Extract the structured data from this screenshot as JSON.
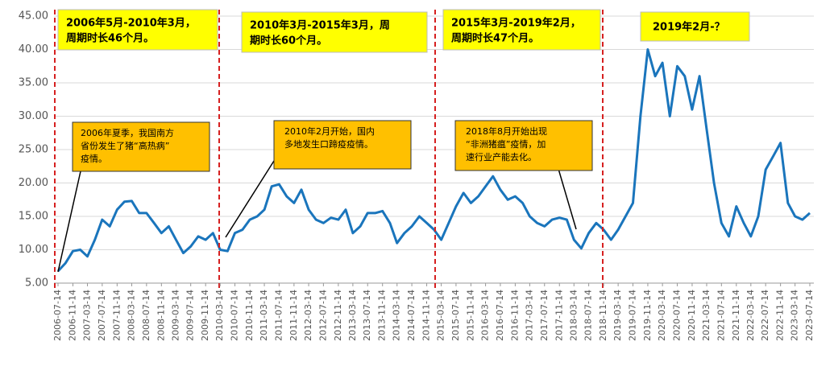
{
  "chart_data": {
    "type": "line",
    "x": [
      "2006-07-14",
      "2006-09-14",
      "2006-11-14",
      "2007-01-14",
      "2007-03-14",
      "2007-05-14",
      "2007-07-14",
      "2007-09-14",
      "2007-11-14",
      "2008-01-14",
      "2008-03-14",
      "2008-05-14",
      "2008-07-14",
      "2008-09-14",
      "2008-11-14",
      "2009-01-14",
      "2009-03-14",
      "2009-05-14",
      "2009-07-14",
      "2009-09-14",
      "2009-11-14",
      "2010-01-14",
      "2010-03-14",
      "2010-05-14",
      "2010-07-14",
      "2010-09-14",
      "2010-11-14",
      "2011-01-14",
      "2011-03-14",
      "2011-05-14",
      "2011-07-14",
      "2011-09-14",
      "2011-11-14",
      "2012-01-14",
      "2012-03-14",
      "2012-05-14",
      "2012-07-14",
      "2012-09-14",
      "2012-11-14",
      "2013-01-14",
      "2013-03-14",
      "2013-05-14",
      "2013-07-14",
      "2013-09-14",
      "2013-11-14",
      "2014-01-14",
      "2014-03-14",
      "2014-05-14",
      "2014-07-14",
      "2014-09-14",
      "2014-11-14",
      "2015-01-14",
      "2015-03-14",
      "2015-05-14",
      "2015-07-14",
      "2015-09-14",
      "2015-11-14",
      "2016-01-14",
      "2016-03-14",
      "2016-05-14",
      "2016-07-14",
      "2016-09-14",
      "2016-11-14",
      "2017-01-14",
      "2017-03-14",
      "2017-05-14",
      "2017-07-14",
      "2017-09-14",
      "2017-11-14",
      "2018-01-14",
      "2018-03-14",
      "2018-05-14",
      "2018-07-14",
      "2018-09-14",
      "2018-11-14",
      "2019-01-14",
      "2019-03-14",
      "2019-05-14",
      "2019-07-14",
      "2019-09-14",
      "2019-11-14",
      "2020-01-14",
      "2020-03-14",
      "2020-05-14",
      "2020-07-14",
      "2020-09-14",
      "2020-11-14",
      "2021-01-14",
      "2021-03-14",
      "2021-05-14",
      "2021-07-14",
      "2021-09-14",
      "2021-11-14",
      "2022-01-14",
      "2022-03-14",
      "2022-05-14",
      "2022-07-14",
      "2022-09-14",
      "2022-11-14",
      "2023-01-14",
      "2023-03-14",
      "2023-05-14",
      "2023-07-14"
    ],
    "series": [
      {
        "color": "#1a75bc",
        "values": [
          6.8,
          8.0,
          9.8,
          10.0,
          9.0,
          11.5,
          14.5,
          13.5,
          16.0,
          17.2,
          17.3,
          15.5,
          15.5,
          14.0,
          12.5,
          13.5,
          11.5,
          9.5,
          10.5,
          12.0,
          11.5,
          12.5,
          10.0,
          9.8,
          12.5,
          13.0,
          14.5,
          15.0,
          16.0,
          19.5,
          19.8,
          18.0,
          17.0,
          19.0,
          16.0,
          14.5,
          14.0,
          14.8,
          14.5,
          16.0,
          12.5,
          13.5,
          15.5,
          15.5,
          15.8,
          14.0,
          11.0,
          12.5,
          13.5,
          15.0,
          14.0,
          13.0,
          11.5,
          14.0,
          16.5,
          18.5,
          17.0,
          18.0,
          19.5,
          21.0,
          19.0,
          17.5,
          18.0,
          17.0,
          15.0,
          14.0,
          13.5,
          14.5,
          14.8,
          14.5,
          11.5,
          10.2,
          12.5,
          14.0,
          13.0,
          11.5,
          13.0,
          15.0,
          17.0,
          30.0,
          40.0,
          36.0,
          38.0,
          30.0,
          37.5,
          36.0,
          31.0,
          36.0,
          28.0,
          20.0,
          14.0,
          12.0,
          16.5,
          14.0,
          12.0,
          15.0,
          22.0,
          24.0,
          26.0,
          17.0,
          15.0,
          14.5,
          15.5
        ]
      }
    ],
    "xlim": [
      "2006-07-14",
      "2023-07-14"
    ],
    "xticks": [
      "2006-07-14",
      "2006-11-14",
      "2007-03-14",
      "2007-07-14",
      "2007-11-14",
      "2008-03-14",
      "2008-07-14",
      "2008-11-14",
      "2009-03-14",
      "2009-07-14",
      "2009-11-14",
      "2010-03-14",
      "2010-07-14",
      "2010-11-14",
      "2011-03-14",
      "2011-07-14",
      "2011-11-14",
      "2012-03-14",
      "2012-07-14",
      "2012-11-14",
      "2013-03-14",
      "2013-07-14",
      "2013-11-14",
      "2014-03-14",
      "2014-07-14",
      "2014-11-14",
      "2015-03-14",
      "2015-07-14",
      "2015-11-14",
      "2016-03-14",
      "2016-07-14",
      "2016-11-14",
      "2017-03-14",
      "2017-07-14",
      "2017-11-14",
      "2018-03-14",
      "2018-07-14",
      "2018-11-14",
      "2019-03-14",
      "2019-07-14",
      "2019-11-14",
      "2020-03-14",
      "2020-07-14",
      "2020-11-14",
      "2021-03-14",
      "2021-07-14",
      "2021-11-14",
      "2022-03-14",
      "2022-07-14",
      "2022-11-14",
      "2023-03-14",
      "2023-07-14"
    ],
    "ylim": [
      5,
      45
    ],
    "yticks": [
      {
        "value": 5,
        "label": "5.00"
      },
      {
        "value": 10,
        "label": "10.00"
      },
      {
        "value": 15,
        "label": "15.00"
      },
      {
        "value": 20,
        "label": "20.00"
      },
      {
        "value": 25,
        "label": "25.00"
      },
      {
        "value": 30,
        "label": "30.00"
      },
      {
        "value": 35,
        "label": "35.00"
      },
      {
        "value": 40,
        "label": "40.00"
      },
      {
        "value": 45,
        "label": "45.00"
      }
    ],
    "grid": true,
    "annotations": [
      {
        "lines": [
          "2006年5月-2010年3月，",
          "周期时长46个月。"
        ]
      },
      {
        "lines": [
          "2010年3月-2015年3月，周",
          "期时长60个月。"
        ]
      },
      {
        "lines": [
          "2015年3月-2019年2月，",
          "周期时长47个月。"
        ]
      },
      {
        "lines": [
          "2019年2月-？"
        ]
      },
      {
        "lines": [
          "2006年夏季，我国南方",
          "省份发生了猪“高热病”",
          "疫情。"
        ]
      },
      {
        "lines": [
          "2010年2月开始，国内",
          "多地发生口蹄疫疫情。"
        ]
      },
      {
        "lines": [
          "2018年8月开始出现",
          "“非洲猪瘟”疫情，加",
          "速行业产能去化。"
        ]
      }
    ]
  }
}
